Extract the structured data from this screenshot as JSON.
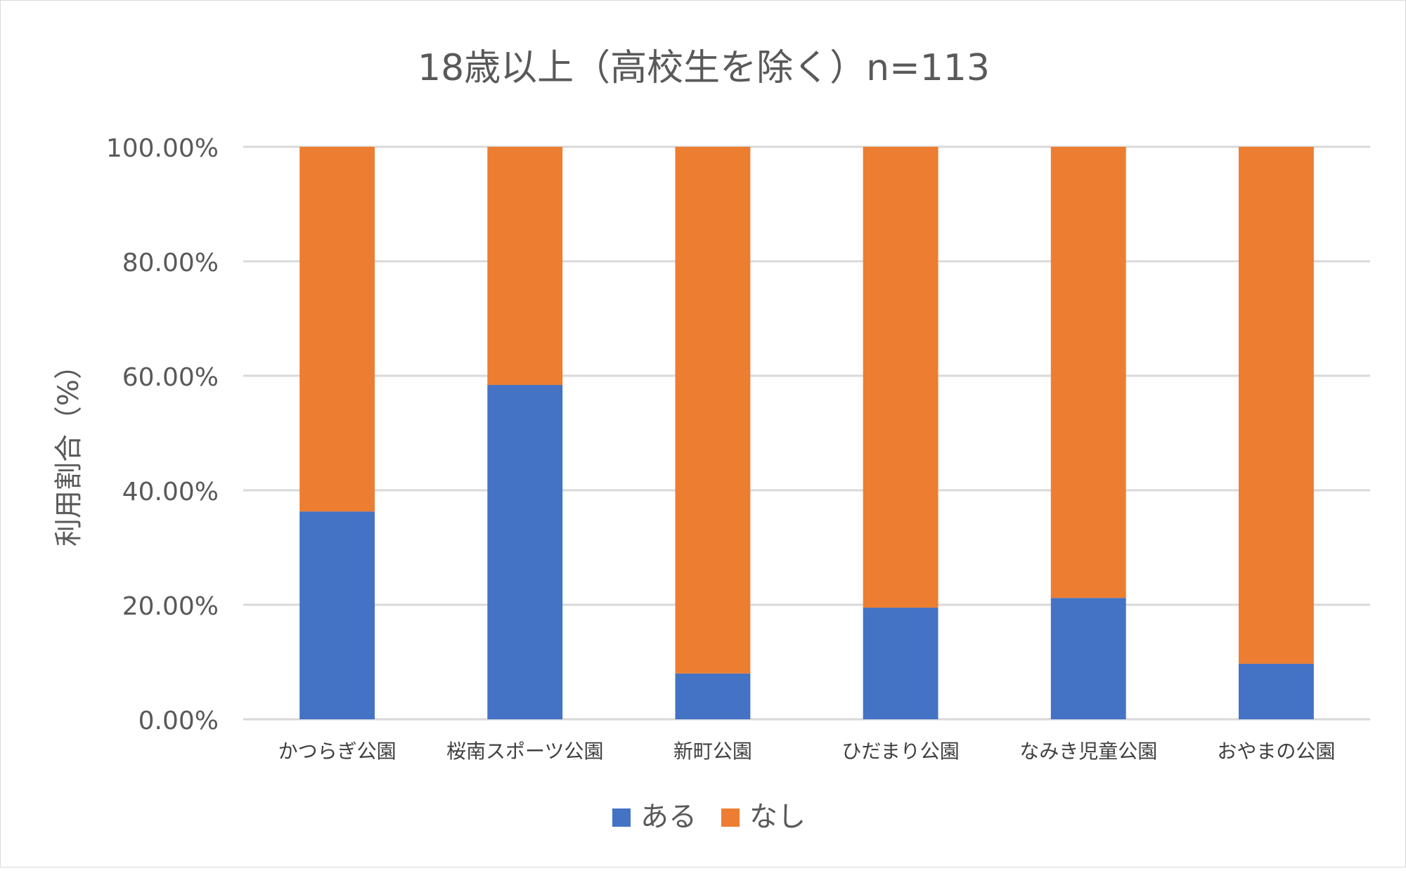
{
  "chart_data": {
    "type": "bar",
    "stacked": true,
    "title": "18歳以上（高校生を除く）n=113",
    "xlabel": "",
    "ylabel": "利用割合（%）",
    "ylim": [
      0,
      100
    ],
    "y_ticks": [
      "0.00%",
      "20.00%",
      "40.00%",
      "60.00%",
      "80.00%",
      "100.00%"
    ],
    "grid": true,
    "legend_position": "bottom",
    "categories": [
      "かつらぎ公園",
      "桜南スポーツ公園",
      "新町公園",
      "ひだまり公園",
      "なみき児童公園",
      "おやまの公園"
    ],
    "series": [
      {
        "name": "ある",
        "color": "#4472c4",
        "values": [
          36.3,
          58.4,
          8.0,
          19.5,
          21.2,
          9.7
        ]
      },
      {
        "name": "なし",
        "color": "#ed7d31",
        "values": [
          63.7,
          41.6,
          92.0,
          80.5,
          78.8,
          90.3
        ]
      }
    ]
  }
}
